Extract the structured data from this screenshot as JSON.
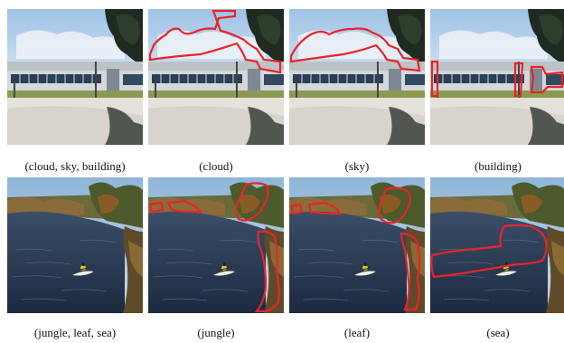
{
  "figure": {
    "rows": [
      {
        "scene": "campus-building",
        "captions": [
          "(cloud, sky, building)",
          "(cloud)",
          "(sky)",
          "(building)"
        ],
        "highlight_color": "#e8242a"
      },
      {
        "scene": "river-kayak",
        "captions": [
          "(jungle, leaf, sea)",
          "(jungle)",
          "(leaf)",
          "(sea)"
        ],
        "highlight_color": "#e8242a"
      }
    ]
  }
}
